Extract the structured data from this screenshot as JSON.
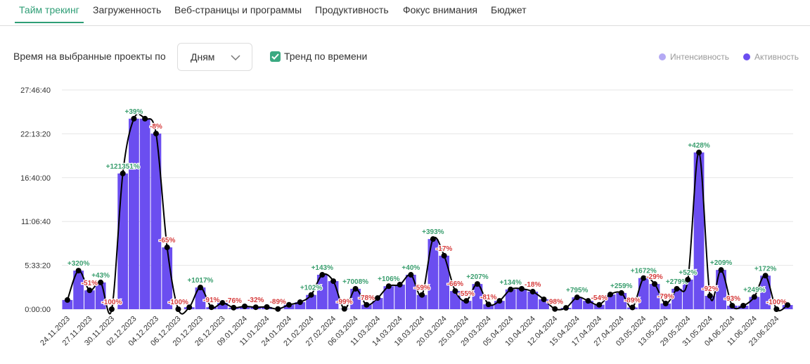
{
  "tabs": [
    "Тайм трекинг",
    "Загруженность",
    "Веб-страницы и программы",
    "Продуктивность",
    "Фокус внимания",
    "Бюджет"
  ],
  "controls": {
    "period_label": "Время на выбранные проекты по",
    "period_value": "Дням",
    "trend_label": "Тренд по времени"
  },
  "chart_data": {
    "type": "bar",
    "legend": [
      {
        "name": "Интенсивность",
        "color": "#b4a9f4"
      },
      {
        "name": "Активность",
        "color": "#6b4ef0"
      }
    ],
    "categories": [
      "24.11.2023",
      null,
      "27.11.2023",
      null,
      "30.11.2023",
      null,
      "02.12.2023",
      null,
      "04.12.2023",
      null,
      "06.12.2023",
      null,
      "20.12.2023",
      null,
      "26.12.2023",
      null,
      "09.01.2024",
      null,
      "11.01.2024",
      null,
      "24.01.2024",
      null,
      "21.02.2024",
      null,
      "27.02.2024",
      null,
      "06.03.2024",
      null,
      "11.03.2024",
      null,
      "14.03.2024",
      null,
      "18.03.2024",
      null,
      "20.03.2024",
      null,
      "25.03.2024",
      null,
      "29.03.2024",
      null,
      "05.04.2024",
      null,
      "10.04.2024",
      null,
      "12.04.2024",
      null,
      "15.04.2024",
      null,
      "17.04.2024",
      null,
      "27.04.2024",
      null,
      "03.05.2024",
      null,
      "13.05.2024",
      null,
      "29.05.2024",
      null,
      "31.05.2024",
      null,
      "04.06.2024",
      null,
      "11.06.2024",
      null,
      "23.06.2024",
      null
    ],
    "values": [
      4200,
      17600,
      8600,
      12200,
      0,
      61900,
      86900,
      86900,
      80100,
      28200,
      0,
      900,
      9900,
      900,
      2900,
      700,
      1300,
      900,
      1000,
      100,
      2000,
      3200,
      6500,
      15700,
      12800,
      150,
      9300,
      2000,
      5100,
      10500,
      11200,
      15700,
      6500,
      32000,
      24400,
      8300,
      3800,
      11500,
      2200,
      3800,
      9000,
      9300,
      8000,
      4500,
      100,
      600,
      5400,
      3800,
      2000,
      6700,
      7400,
      800,
      14200,
      11500,
      2600,
      9300,
      13500,
      71500,
      6100,
      17900,
      1600,
      1600,
      5600,
      15300,
      0,
      1900
    ],
    "change_labels": [
      null,
      "+320%",
      "-51%",
      "+43%",
      "-100%",
      "+121351%",
      "+39%",
      null,
      "-8%",
      "-65%",
      "-100%",
      null,
      "+1017%",
      "-91%",
      null,
      "-76%",
      null,
      "-32%",
      null,
      "-89%",
      null,
      null,
      "+102%",
      "+143%",
      null,
      "-99%",
      "+7008%",
      "-78%",
      null,
      "+106%",
      null,
      "+40%",
      "-59%",
      "+393%",
      "-17%",
      "-66%",
      "-55%",
      "+207%",
      "-81%",
      null,
      "+134%",
      null,
      "-18%",
      null,
      "-98%",
      null,
      "+795%",
      null,
      "-54%",
      null,
      "+259%",
      "-89%",
      "+1672%",
      "-29%",
      "-79%",
      "+279%",
      "+52%",
      "+428%",
      "-92%",
      "+209%",
      "-93%",
      null,
      "+249%",
      "+172%",
      "-100%",
      null
    ],
    "ylim": [
      0,
      100000
    ],
    "yticks": [
      {
        "value": 0,
        "label": "0:00:00"
      },
      {
        "value": 20000,
        "label": "5:33:20"
      },
      {
        "value": 40000,
        "label": "11:06:40"
      },
      {
        "value": 60000,
        "label": "16:40:00"
      },
      {
        "value": 80000,
        "label": "22:13:20"
      },
      {
        "value": 100000,
        "label": "27:46:40"
      }
    ],
    "grid": true
  }
}
